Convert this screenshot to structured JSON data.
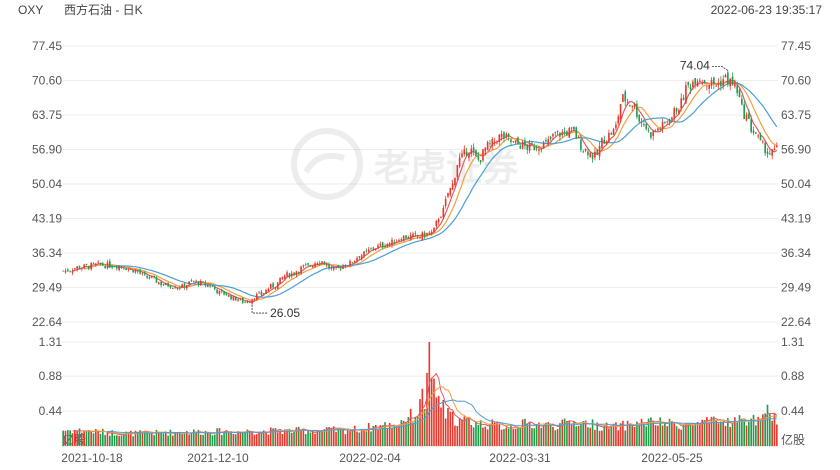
{
  "header": {
    "ticker": "OXY",
    "name": "西方石油 - 日K",
    "datetime": "2022-06-23 19:35:17"
  },
  "watermark": "老虎证券",
  "colors": {
    "up": "#e8382c",
    "down": "#1f9e4a",
    "ma_red": "#e05a6a",
    "ma_orange": "#f0a040",
    "ma_blue": "#4a9fd8",
    "grid": "#eeeeee",
    "text": "#555555"
  },
  "chart_data": {
    "type": "candlestick",
    "price_axis": {
      "ticks": [
        "77.45",
        "70.60",
        "63.75",
        "56.90",
        "50.04",
        "43.19",
        "36.34",
        "29.49",
        "22.64"
      ],
      "ylim": [
        22.64,
        77.45
      ]
    },
    "volume_axis": {
      "ticks": [
        "1.31",
        "0.88",
        "0.44"
      ],
      "unit_label": "亿股",
      "ylim": [
        0,
        1.31
      ]
    },
    "x_labels": [
      "2021-10-18",
      "2021-12-10",
      "2022-02-04",
      "2022-03-31",
      "2022-05-25"
    ],
    "annotations": [
      {
        "label": "74.04",
        "kind": "high",
        "value": 74.04
      },
      {
        "label": "26.05",
        "kind": "low",
        "value": 26.05
      }
    ],
    "close_series": [
      [
        0,
        32.8
      ],
      [
        8,
        33.6
      ],
      [
        16,
        34.0
      ],
      [
        24,
        33.8
      ],
      [
        30,
        33.0
      ],
      [
        36,
        31.5
      ],
      [
        44,
        30.0
      ],
      [
        50,
        29.6
      ],
      [
        56,
        30.6
      ],
      [
        62,
        30.0
      ],
      [
        68,
        28.4
      ],
      [
        74,
        27.3
      ],
      [
        78,
        26.6
      ],
      [
        84,
        28.0
      ],
      [
        90,
        29.8
      ],
      [
        96,
        32.0
      ],
      [
        104,
        33.6
      ],
      [
        110,
        34.8
      ],
      [
        116,
        33.0
      ],
      [
        122,
        34.2
      ],
      [
        128,
        36.0
      ],
      [
        134,
        37.5
      ],
      [
        140,
        38.3
      ],
      [
        146,
        39.5
      ],
      [
        152,
        39.6
      ],
      [
        158,
        40.3
      ],
      [
        162,
        44.0
      ],
      [
        166,
        49.0
      ],
      [
        170,
        55.0
      ],
      [
        174,
        57.0
      ],
      [
        178,
        54.8
      ],
      [
        182,
        57.5
      ],
      [
        188,
        59.5
      ],
      [
        194,
        58.0
      ],
      [
        200,
        57.3
      ],
      [
        206,
        57.8
      ],
      [
        212,
        60.0
      ],
      [
        218,
        60.5
      ],
      [
        224,
        56.8
      ],
      [
        228,
        55.5
      ],
      [
        232,
        59.0
      ],
      [
        236,
        60.5
      ],
      [
        240,
        67.0
      ],
      [
        244,
        66.0
      ],
      [
        248,
        62.5
      ],
      [
        252,
        60.0
      ],
      [
        256,
        61.2
      ],
      [
        260,
        63.0
      ],
      [
        264,
        65.5
      ],
      [
        268,
        69.5
      ],
      [
        272,
        71.3
      ],
      [
        276,
        70.2
      ],
      [
        280,
        69.8
      ],
      [
        284,
        71.0
      ],
      [
        288,
        69.5
      ],
      [
        292,
        64.0
      ],
      [
        296,
        60.5
      ],
      [
        300,
        57.5
      ],
      [
        303,
        56.0
      ],
      [
        306,
        56.8
      ]
    ],
    "volume_series": [
      [
        0,
        0.2
      ],
      [
        30,
        0.16
      ],
      [
        60,
        0.18
      ],
      [
        90,
        0.19
      ],
      [
        120,
        0.2
      ],
      [
        140,
        0.26
      ],
      [
        150,
        0.38
      ],
      [
        155,
        0.55
      ],
      [
        158,
        0.7
      ],
      [
        161,
        0.6
      ],
      [
        164,
        0.4
      ],
      [
        170,
        0.32
      ],
      [
        180,
        0.28
      ],
      [
        190,
        0.25
      ],
      [
        200,
        0.28
      ],
      [
        210,
        0.26
      ],
      [
        220,
        0.3
      ],
      [
        235,
        0.24
      ],
      [
        250,
        0.3
      ],
      [
        265,
        0.27
      ],
      [
        280,
        0.3
      ],
      [
        295,
        0.33
      ],
      [
        306,
        0.34
      ]
    ],
    "volume_spikes": [
      [
        154,
        0.72
      ],
      [
        156,
        0.92
      ],
      [
        157,
        1.31
      ],
      [
        159,
        0.85
      ],
      [
        163,
        0.58
      ],
      [
        302,
        0.52
      ]
    ],
    "ma_lengths": [
      5,
      10,
      20
    ]
  }
}
